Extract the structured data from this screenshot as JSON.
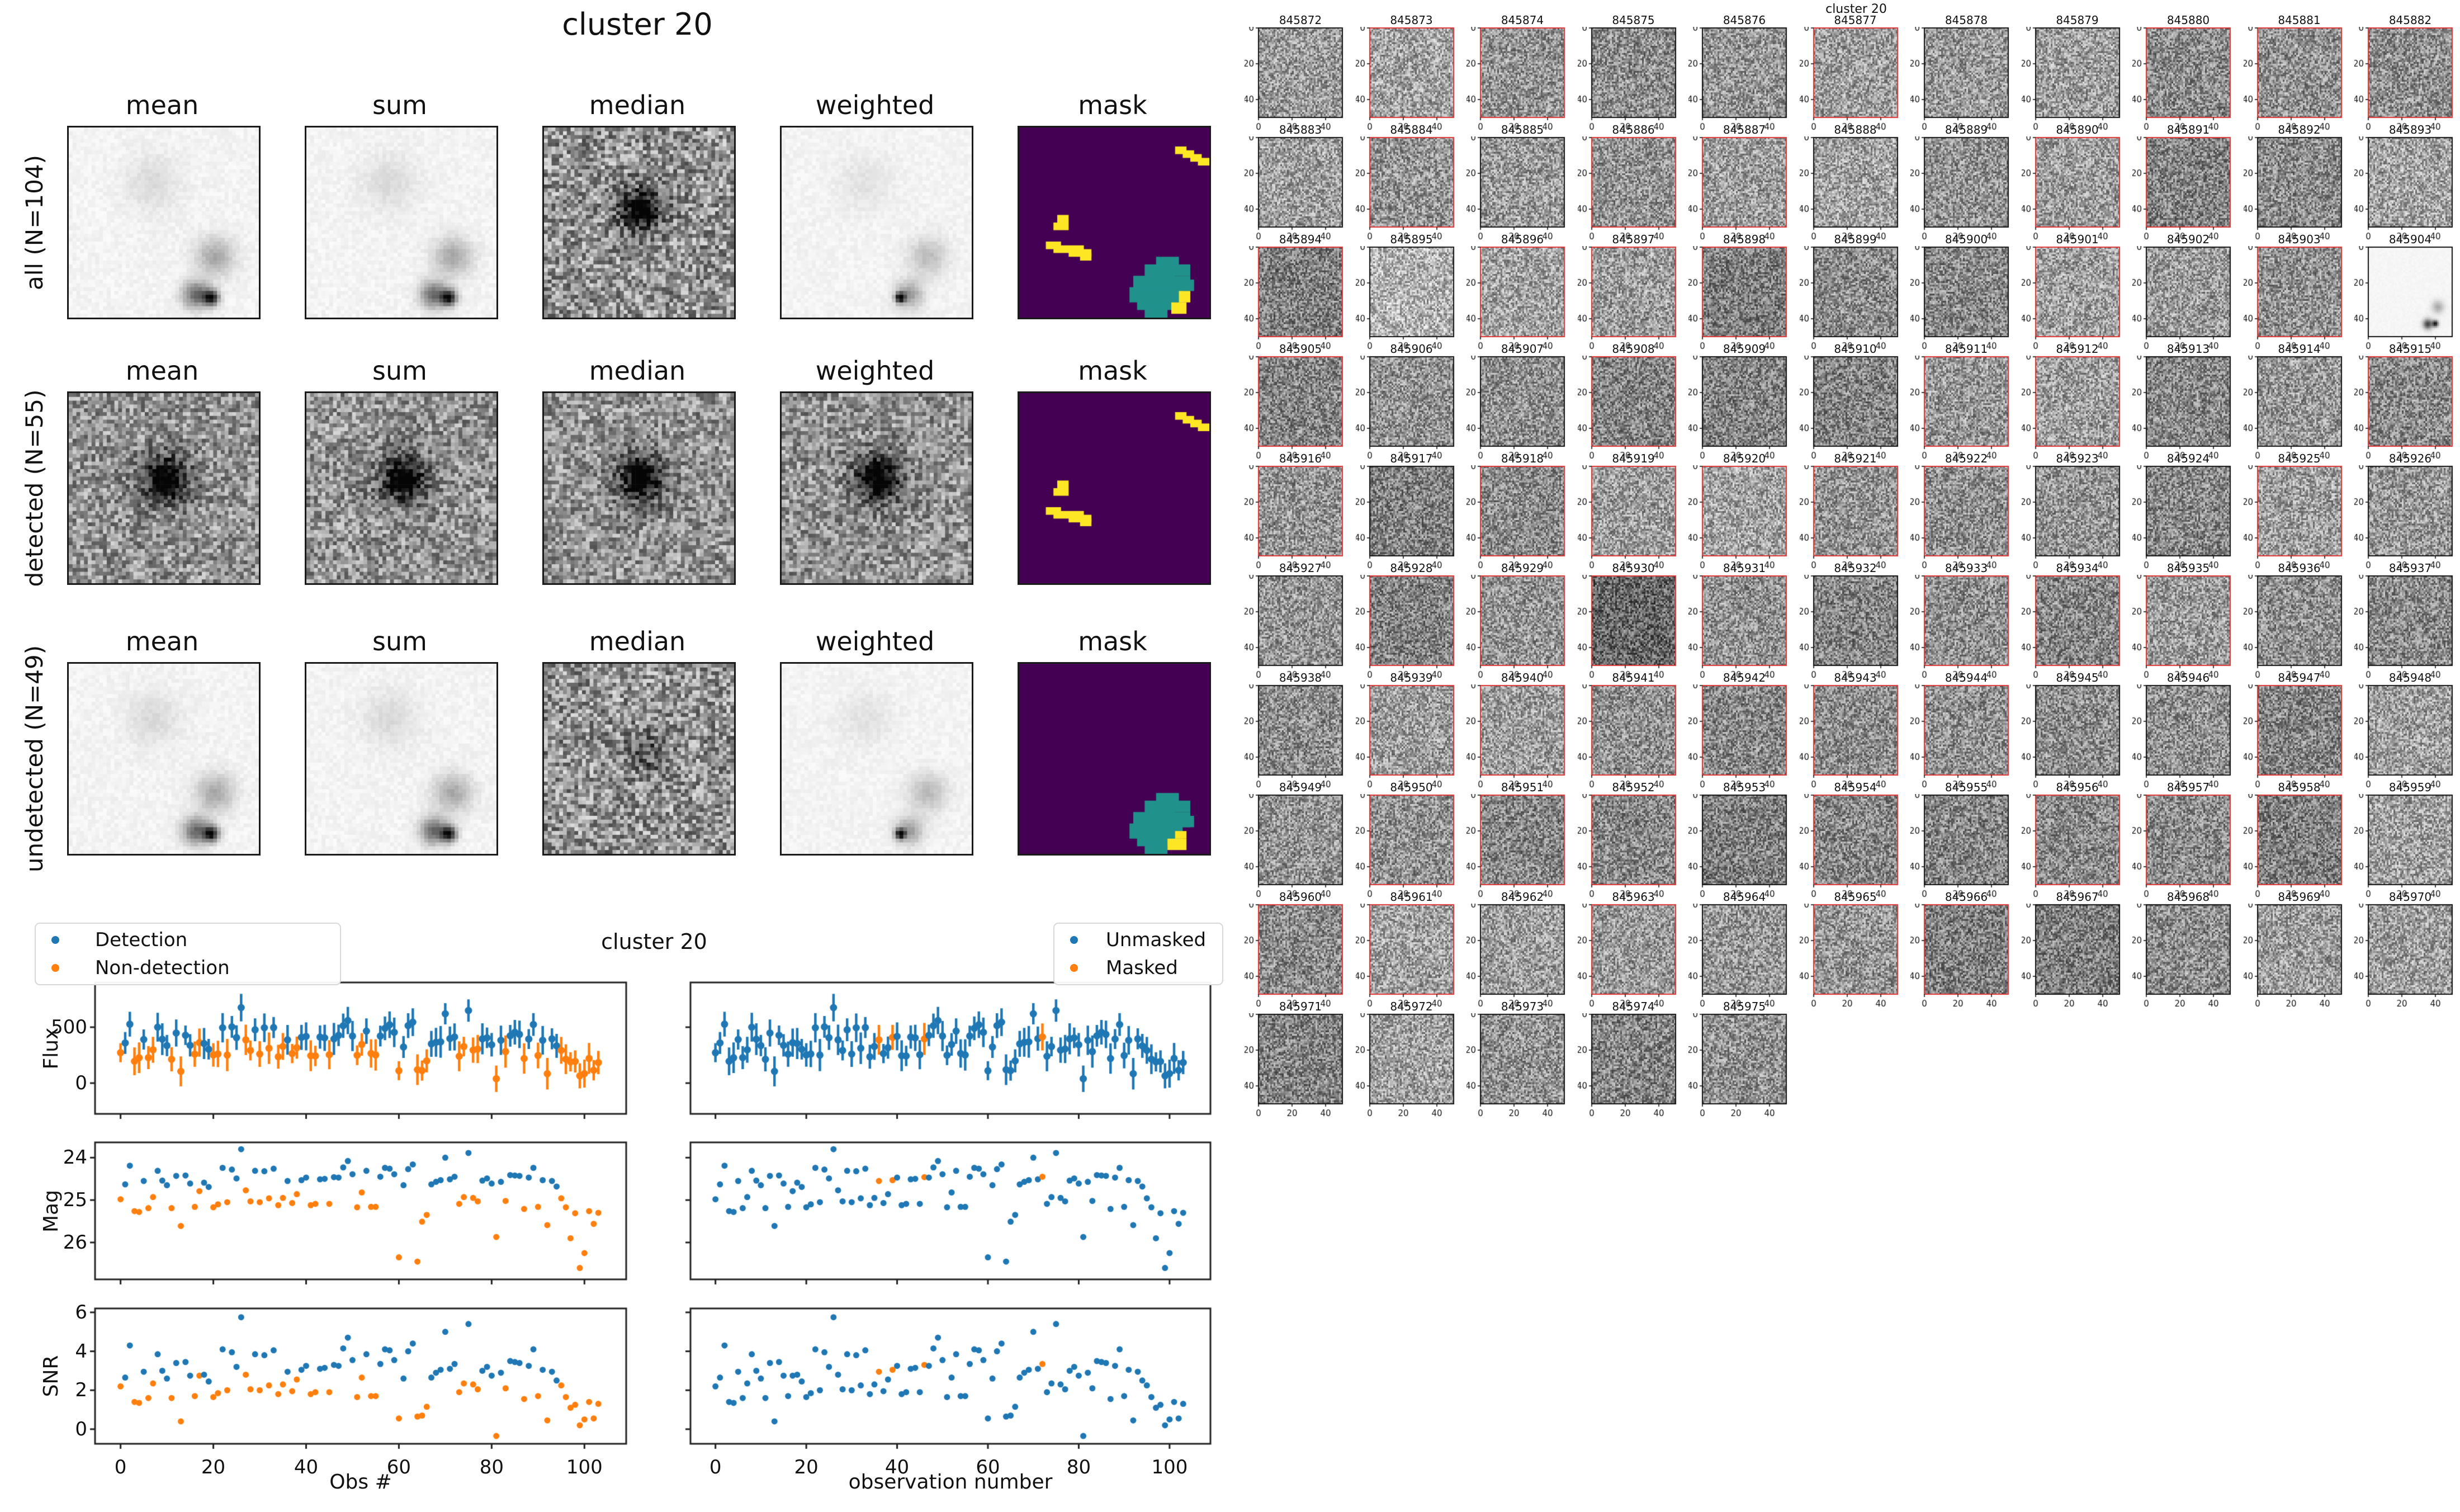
{
  "colors": {
    "blue": "#1f77b4",
    "orange": "#ff7f0e",
    "mask_background": "#440154",
    "mask_blob": "#21918c",
    "mask_streak": "#fde725",
    "red_border": "#dd3333",
    "spine": "#1a1a1a"
  },
  "figure_left": {
    "title": "cluster 20",
    "col_headers": [
      "mean",
      "sum",
      "median",
      "weighted",
      "mask"
    ],
    "rows": [
      {
        "label": "all (N=104)",
        "panel_styles": [
          "faint",
          "faint",
          "median-all",
          "faint-weighted",
          "mask-all"
        ]
      },
      {
        "label": "detected (N=55)",
        "panel_styles": [
          "det",
          "det",
          "det",
          "det",
          "mask-detected"
        ]
      },
      {
        "label": "undetected (N=49)",
        "panel_styles": [
          "faint",
          "faint",
          "median-undet",
          "faint-weighted",
          "mask-undetected"
        ]
      }
    ]
  },
  "grid_right": {
    "title": "cluster 20",
    "tick_labels": [
      "0",
      "20",
      "40"
    ],
    "smooth_cell_id": 845904,
    "red_border_source": "detected",
    "ids": [
      845872,
      845873,
      845874,
      845875,
      845876,
      845877,
      845878,
      845879,
      845880,
      845881,
      845882,
      845883,
      845884,
      845885,
      845886,
      845887,
      845888,
      845889,
      845890,
      845891,
      845892,
      845893,
      845894,
      845895,
      845896,
      845897,
      845898,
      845899,
      845900,
      845901,
      845902,
      845903,
      845904,
      845905,
      845906,
      845907,
      845908,
      845909,
      845910,
      845911,
      845912,
      845913,
      845914,
      845915,
      845916,
      845917,
      845918,
      845919,
      845920,
      845921,
      845922,
      845923,
      845924,
      845925,
      845926,
      845927,
      845928,
      845929,
      845930,
      845931,
      845932,
      845933,
      845934,
      845935,
      845936,
      845937,
      845938,
      845939,
      845940,
      845941,
      845942,
      845943,
      845944,
      845945,
      845946,
      845947,
      845948,
      845949,
      845950,
      845951,
      845952,
      845953,
      845954,
      845955,
      845956,
      845957,
      845958,
      845959,
      845960,
      845961,
      845962,
      845963,
      845964,
      845965,
      845966,
      845967,
      845968,
      845969,
      845970,
      845971,
      845972,
      845973,
      845974,
      845975
    ]
  },
  "bottom_figure": {
    "title": "cluster 20",
    "legend_left": {
      "items": [
        {
          "label": "Detection",
          "color": "#1f77b4"
        },
        {
          "label": "Non-detection",
          "color": "#ff7f0e"
        }
      ]
    },
    "legend_right": {
      "items": [
        {
          "label": "Unmasked",
          "color": "#1f77b4"
        },
        {
          "label": "Masked",
          "color": "#ff7f0e"
        }
      ]
    },
    "xlabel_left": "Obs #",
    "xlabel_right": "observation number",
    "x_ticks": [
      0,
      20,
      40,
      60,
      80,
      100
    ],
    "panels": {
      "flux": {
        "ylabel": "Flux",
        "yticks": [
          500,
          0
        ],
        "ylim": [
          -275,
          900
        ]
      },
      "mag": {
        "ylabel": "Mag",
        "yticks": [
          24,
          25,
          26
        ],
        "ylim": [
          23.64,
          26.87
        ],
        "inverted": true
      },
      "snr": {
        "ylabel": "SNR",
        "yticks": [
          6,
          4,
          2,
          0
        ],
        "ylim": [
          -0.75,
          6.2
        ]
      }
    }
  },
  "chart_data": {
    "type": "scatter",
    "suptitle": "cluster 20",
    "x_is_observation_index": true,
    "n_obs": 104,
    "xlim": [
      -5.5,
      109
    ],
    "panels": [
      {
        "row": "flux",
        "ylabel": "Flux",
        "yticks": [
          0,
          500
        ],
        "style": "errorbar"
      },
      {
        "row": "mag",
        "ylabel": "Mag",
        "yticks": [
          24,
          25,
          26
        ],
        "style": "points",
        "inverted_axis": true
      },
      {
        "row": "snr",
        "ylabel": "SNR",
        "yticks": [
          0,
          2,
          4,
          6
        ],
        "style": "points"
      }
    ],
    "left_column_colored_by": "detected (blue=Detection, orange=Non-detection)",
    "right_column_colored_by": "masked (blue=Unmasked, orange=Masked)",
    "observations": {
      "detected": [
        0,
        1,
        1,
        0,
        0,
        1,
        0,
        0,
        1,
        1,
        1,
        0,
        1,
        0,
        1,
        1,
        0,
        0,
        1,
        1,
        0,
        0,
        1,
        0,
        1,
        1,
        1,
        0,
        0,
        1,
        0,
        1,
        0,
        1,
        0,
        0,
        1,
        0,
        0,
        1,
        1,
        0,
        0,
        1,
        1,
        0,
        1,
        1,
        1,
        1,
        1,
        0,
        0,
        1,
        0,
        0,
        1,
        1,
        1,
        1,
        0,
        1,
        1,
        1,
        0,
        0,
        0,
        1,
        1,
        1,
        1,
        1,
        1,
        0,
        0,
        1,
        0,
        0,
        1,
        1,
        1,
        0,
        1,
        0,
        1,
        1,
        1,
        0,
        1,
        1,
        0,
        1,
        0,
        1,
        1,
        0,
        0,
        0,
        0,
        0,
        0,
        0,
        0,
        0
      ],
      "masked_obs": [
        36,
        39,
        46,
        72
      ],
      "flux": [
        272,
        359,
        527,
        195,
        227,
        390,
        228,
        298,
        500,
        393,
        336,
        213,
        448,
        105,
        428,
        338,
        259,
        362,
        354,
        303,
        252,
        261,
        495,
        251,
        503,
        407,
        675,
        387,
        292,
        477,
        260,
        495,
        312,
        497,
        236,
        328,
        387,
        264,
        317,
        409,
        418,
        245,
        243,
        412,
        405,
        254,
        395,
        427,
        513,
        560,
        421,
        249,
        346,
        465,
        265,
        252,
        421,
        490,
        522,
        454,
        111,
        323,
        514,
        545,
        120,
        112,
        199,
        351,
        365,
        369,
        620,
        398,
        413,
        240,
        327,
        649,
        295,
        305,
        396,
        405,
        343,
        39,
        383,
        282,
        423,
        455,
        436,
        220,
        394,
        524,
        247,
        383,
        84,
        396,
        333,
        293,
        214,
        190,
        194,
        65,
        85,
        221,
        115,
        184
      ],
      "flux_err": [
        85,
        98,
        111,
        124,
        137,
        90,
        103,
        116,
        129,
        142,
        95,
        108,
        121,
        134,
        87,
        100,
        113,
        126,
        139,
        92,
        105,
        118,
        131,
        144,
        97,
        110,
        123,
        136,
        89,
        102,
        115,
        128,
        141,
        94,
        107,
        120,
        133,
        86,
        99,
        112,
        125,
        138,
        91,
        104,
        117,
        130,
        143,
        96,
        109,
        122,
        135,
        88,
        101,
        114,
        127,
        140,
        93,
        106,
        119,
        132,
        85,
        98,
        111,
        124,
        137,
        90,
        103,
        116,
        129,
        142,
        95,
        108,
        121,
        134,
        87,
        100,
        113,
        126,
        139,
        92,
        105,
        118,
        131,
        144,
        97,
        110,
        123,
        136,
        89,
        102,
        115,
        128,
        141,
        94,
        107,
        120,
        133,
        86,
        99,
        112,
        125,
        138,
        91,
        104
      ],
      "mag": [
        24.98,
        24.63,
        24.19,
        25.26,
        25.28,
        24.55,
        25.19,
        24.93,
        24.31,
        24.54,
        24.65,
        25.19,
        24.43,
        25.61,
        24.42,
        24.61,
        25.16,
        24.79,
        24.59,
        24.69,
        25.17,
        25.1,
        24.24,
        25.05,
        24.28,
        24.49,
        23.8,
        24.77,
        25.03,
        24.31,
        25.05,
        24.32,
        24.96,
        24.26,
        25.12,
        24.95,
        24.55,
        25.07,
        24.86,
        24.53,
        24.47,
        25.12,
        25.09,
        24.51,
        24.5,
        25.09,
        24.46,
        24.47,
        24.23,
        24.08,
        24.39,
        25.17,
        24.82,
        24.31,
        25.16,
        25.16,
        24.45,
        24.24,
        24.26,
        24.39,
        26.35,
        24.65,
        24.27,
        24.16,
        26.45,
        25.51,
        25.35,
        24.63,
        24.57,
        24.53,
        24.0,
        24.51,
        24.45,
        25.09,
        24.93,
        23.89,
        24.95,
        25.03,
        24.54,
        24.49,
        24.61,
        25.87,
        24.57,
        25.02,
        24.41,
        24.42,
        24.43,
        25.21,
        24.47,
        24.24,
        25.16,
        24.53,
        25.59,
        24.55,
        24.68,
        24.96,
        25.17,
        25.9,
        25.31,
        26.6,
        26.25,
        25.26,
        25.56,
        25.3
      ],
      "snr": [
        2.2,
        2.65,
        4.3,
        1.4,
        1.35,
        2.95,
        1.6,
        2.35,
        3.85,
        3.0,
        2.6,
        1.6,
        3.4,
        0.4,
        3.45,
        2.75,
        1.7,
        2.75,
        2.8,
        2.45,
        1.65,
        1.85,
        4.1,
        2.0,
        3.95,
        3.2,
        5.75,
        2.8,
        2.05,
        3.85,
        2.0,
        3.8,
        2.25,
        4.05,
        1.8,
        2.3,
        2.95,
        1.95,
        2.55,
        3.05,
        3.25,
        1.8,
        1.9,
        3.1,
        3.15,
        1.9,
        3.3,
        3.25,
        4.15,
        4.7,
        3.55,
        1.65,
        2.65,
        3.85,
        1.7,
        1.7,
        3.35,
        4.1,
        4.05,
        3.55,
        0.55,
        2.6,
        4.0,
        4.4,
        0.65,
        0.7,
        1.15,
        2.65,
        2.9,
        3.05,
        5.0,
        3.1,
        3.35,
        1.9,
        2.35,
        5.4,
        2.3,
        2.05,
        3.0,
        3.2,
        2.75,
        -0.35,
        2.9,
        2.1,
        3.5,
        3.45,
        3.4,
        1.55,
        3.25,
        4.1,
        1.7,
        3.05,
        0.45,
        2.95,
        2.5,
        2.25,
        1.65,
        1.1,
        1.25,
        0.2,
        0.5,
        1.4,
        0.55,
        1.3
      ]
    }
  }
}
